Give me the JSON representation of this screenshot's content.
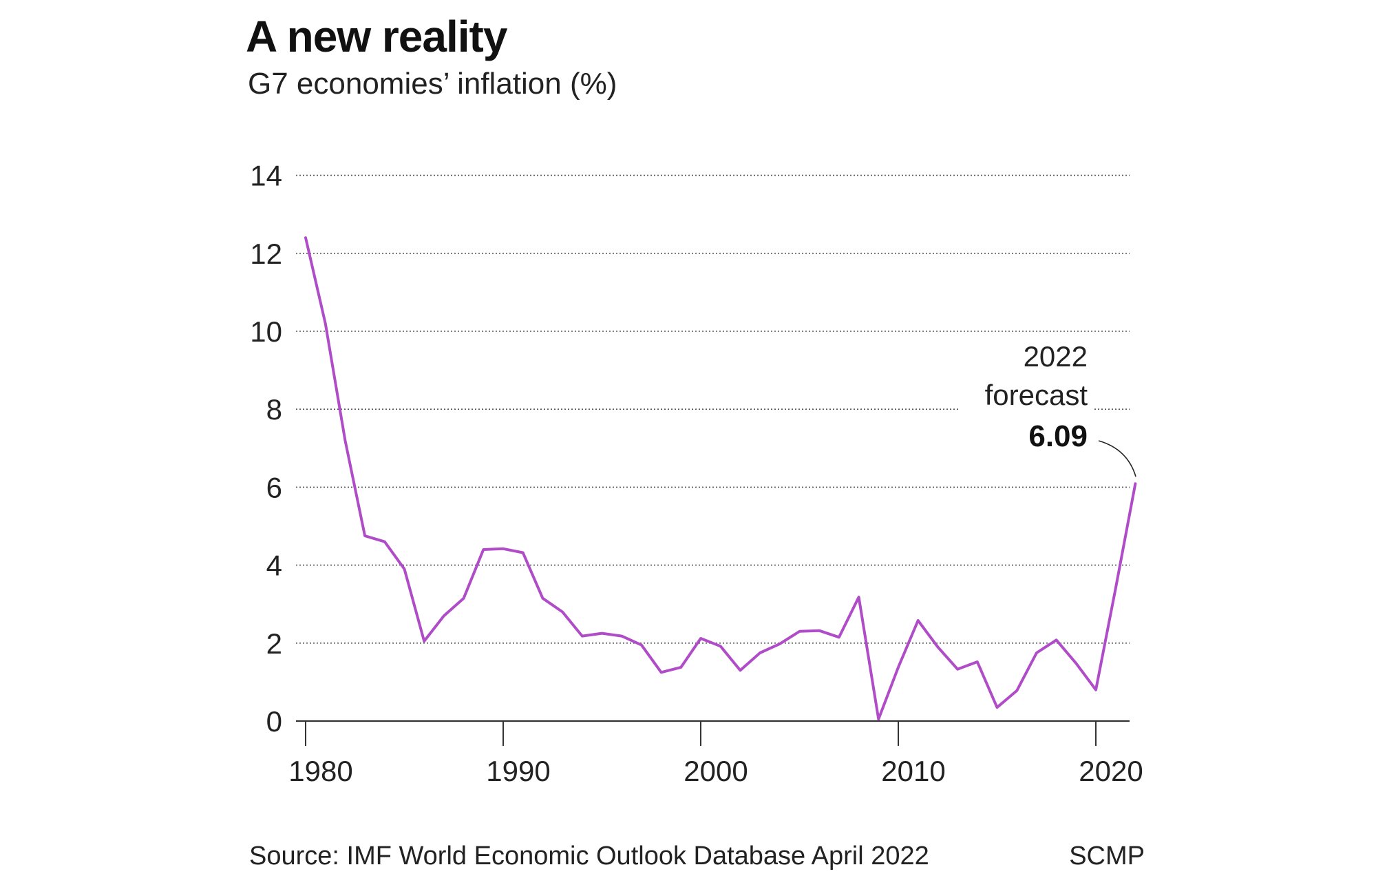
{
  "header": {
    "title": "A new reality",
    "subtitle": "G7 economies’ inflation (%)"
  },
  "footer": {
    "source": "Source: IMF World Economic Outlook Database April 2022",
    "credit": "SCMP"
  },
  "colors": {
    "line": "#b04cc8",
    "text": "#222222",
    "grid": "#555555"
  },
  "annotation": {
    "line1": "2022",
    "line2": "forecast",
    "value": "6.09"
  },
  "chart_data": {
    "type": "line",
    "title": "A new reality",
    "subtitle": "G7 economies’ inflation (%)",
    "xlabel": "",
    "ylabel": "",
    "xlim": [
      1980,
      2022
    ],
    "ylim": [
      0,
      14
    ],
    "x_ticks": [
      1980,
      1990,
      2000,
      2010,
      2020
    ],
    "y_ticks": [
      0,
      2,
      4,
      6,
      8,
      10,
      12,
      14
    ],
    "grid": "horizontal dotted",
    "legend": "none",
    "series": [
      {
        "x": [
          1980,
          1981,
          1982,
          1983,
          1984,
          1985,
          1986,
          1987,
          1988,
          1989,
          1990,
          1991,
          1992,
          1993,
          1994,
          1995,
          1996,
          1997,
          1998,
          1999,
          2000,
          2001,
          2002,
          2003,
          2004,
          2005,
          2006,
          2007,
          2008,
          2009,
          2010,
          2011,
          2012,
          2013,
          2014,
          2015,
          2016,
          2017,
          2018,
          2019,
          2020,
          2021,
          2022
        ],
        "values": [
          12.4,
          10.2,
          7.2,
          4.75,
          4.6,
          3.9,
          2.05,
          2.7,
          3.15,
          4.4,
          4.42,
          4.32,
          3.15,
          2.8,
          2.18,
          2.25,
          2.18,
          1.95,
          1.25,
          1.38,
          2.12,
          1.92,
          1.3,
          1.75,
          1.98,
          2.3,
          2.32,
          2.15,
          3.18,
          0.05,
          1.38,
          2.58,
          1.9,
          1.33,
          1.52,
          0.35,
          0.78,
          1.75,
          2.08,
          1.48,
          0.8,
          3.4,
          6.09
        ]
      }
    ]
  }
}
